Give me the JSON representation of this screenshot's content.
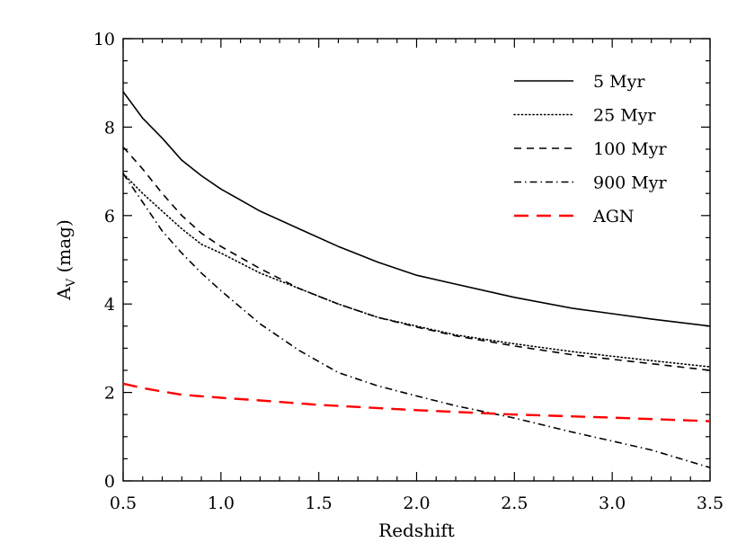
{
  "chart_data": {
    "type": "line",
    "xlabel": "Redshift",
    "ylabel": "A",
    "ylabel_sub": "V",
    "ylabel_suffix": " (mag)",
    "xlim": [
      0.5,
      3.5
    ],
    "ylim": [
      0,
      10
    ],
    "xticks": [
      "0.5",
      "1.0",
      "1.5",
      "2.0",
      "2.5",
      "3.0",
      "3.5"
    ],
    "yticks": [
      "0",
      "2",
      "4",
      "6",
      "8",
      "10"
    ],
    "grid": false,
    "legend_position": "top-right",
    "series": [
      {
        "name": "5 Myr",
        "color": "#000000",
        "style": "solid",
        "x": [
          0.5,
          0.6,
          0.7,
          0.8,
          0.9,
          1.0,
          1.1,
          1.2,
          1.4,
          1.6,
          1.8,
          2.0,
          2.2,
          2.5,
          2.8,
          3.0,
          3.2,
          3.5
        ],
        "y": [
          8.8,
          8.2,
          7.75,
          7.25,
          6.9,
          6.6,
          6.35,
          6.1,
          5.7,
          5.3,
          4.95,
          4.65,
          4.45,
          4.15,
          3.9,
          3.78,
          3.66,
          3.5
        ]
      },
      {
        "name": "25 Myr",
        "color": "#000000",
        "style": "dotted",
        "x": [
          0.5,
          0.6,
          0.7,
          0.8,
          0.9,
          1.0,
          1.2,
          1.4,
          1.6,
          1.8,
          2.0,
          2.2,
          2.5,
          2.8,
          3.0,
          3.2,
          3.5
        ],
        "y": [
          6.95,
          6.5,
          6.1,
          5.7,
          5.35,
          5.15,
          4.7,
          4.35,
          4.0,
          3.7,
          3.5,
          3.3,
          3.1,
          2.92,
          2.82,
          2.72,
          2.58
        ]
      },
      {
        "name": "100 Myr",
        "color": "#000000",
        "style": "dashed",
        "x": [
          0.5,
          0.6,
          0.7,
          0.8,
          0.9,
          1.0,
          1.2,
          1.4,
          1.6,
          1.8,
          2.0,
          2.2,
          2.5,
          2.8,
          3.0,
          3.2,
          3.5
        ],
        "y": [
          7.55,
          7.05,
          6.5,
          6.0,
          5.6,
          5.3,
          4.8,
          4.35,
          4.0,
          3.7,
          3.48,
          3.28,
          3.05,
          2.85,
          2.75,
          2.65,
          2.5
        ]
      },
      {
        "name": "900 Myr",
        "color": "#000000",
        "style": "dashdot",
        "x": [
          0.5,
          0.6,
          0.7,
          0.8,
          0.9,
          1.0,
          1.2,
          1.4,
          1.6,
          1.8,
          2.0,
          2.2,
          2.5,
          2.8,
          3.0,
          3.2,
          3.5
        ],
        "y": [
          6.95,
          6.3,
          5.65,
          5.15,
          4.7,
          4.3,
          3.55,
          2.95,
          2.45,
          2.15,
          1.92,
          1.7,
          1.42,
          1.1,
          0.9,
          0.7,
          0.3
        ]
      },
      {
        "name": "AGN",
        "color": "#ff0000",
        "style": "longdash",
        "x": [
          0.5,
          0.6,
          0.7,
          0.8,
          1.0,
          1.2,
          1.5,
          2.0,
          2.5,
          3.0,
          3.5
        ],
        "y": [
          2.2,
          2.1,
          2.02,
          1.95,
          1.88,
          1.82,
          1.72,
          1.6,
          1.5,
          1.43,
          1.35
        ]
      }
    ]
  }
}
